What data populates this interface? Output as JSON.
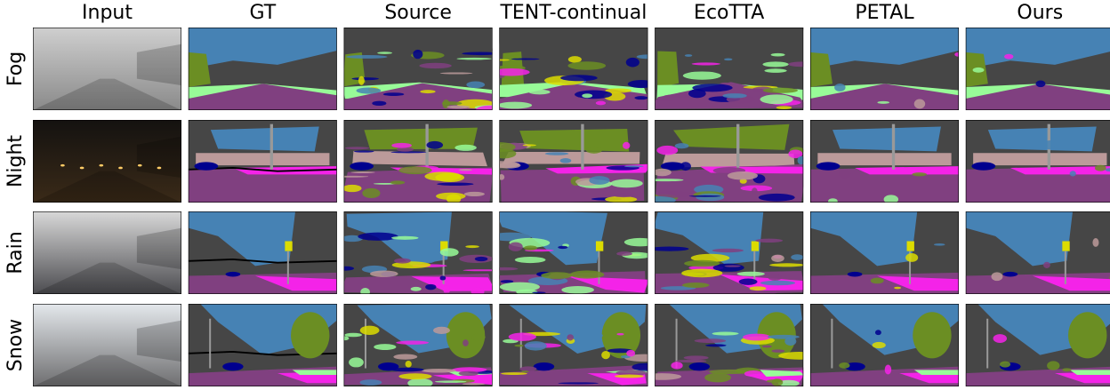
{
  "columns": [
    "Input",
    "GT",
    "Source",
    "TENT-continual",
    "EcoTTA",
    "PETAL",
    "Ours"
  ],
  "rows": [
    "Fog",
    "Night",
    "Rain",
    "Snow"
  ]
}
